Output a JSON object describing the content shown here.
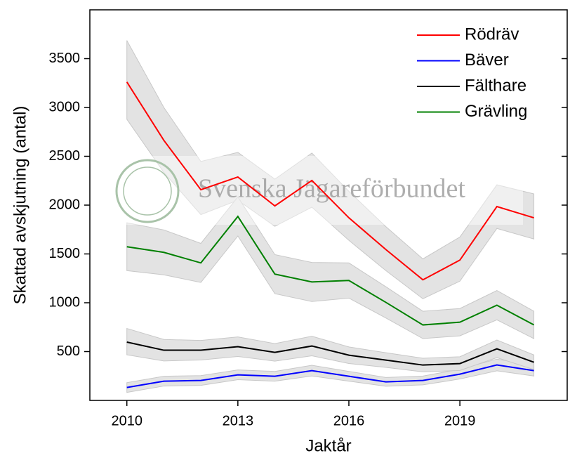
{
  "chart_data": {
    "type": "line",
    "xlabel": "Jaktår",
    "ylabel": "Skattad avskjutning (antal)",
    "watermark": "Svenska Jägareförbundet",
    "x": [
      2010,
      2011,
      2012,
      2013,
      2014,
      2015,
      2016,
      2017,
      2018,
      2019,
      2020,
      2021
    ],
    "xlim": [
      2009,
      2021.9
    ],
    "xticks": [
      2010,
      2013,
      2016,
      2019
    ],
    "ylim": [
      0,
      4000
    ],
    "yticks": [
      500,
      1000,
      1500,
      2000,
      2500,
      3000,
      3500
    ],
    "legend": "upper right",
    "band_color": "#e3e3e3",
    "series": [
      {
        "name": "Rödräv",
        "color": "#ff0000",
        "values": [
          3261,
          2663,
          2158,
          2288,
          1992,
          2252,
          1870,
          1545,
          1235,
          1437,
          1985,
          1870
        ],
        "lower": [
          2879,
          2335,
          1903,
          2050,
          1783,
          1979,
          1639,
          1329,
          1041,
          1221,
          1761,
          1653
        ],
        "upper": [
          3686,
          3000,
          2447,
          2540,
          2266,
          2533,
          2141,
          1780,
          1449,
          1673,
          2208,
          2115
        ]
      },
      {
        "name": "Bäver",
        "color": "#0000ff",
        "values": [
          132,
          197,
          204,
          262,
          247,
          305,
          247,
          190,
          204,
          269,
          363,
          305
        ],
        "lower": [
          82,
          147,
          154,
          212,
          197,
          250,
          197,
          145,
          159,
          219,
          303,
          250
        ],
        "upper": [
          182,
          247,
          254,
          312,
          297,
          360,
          297,
          235,
          249,
          319,
          423,
          360
        ]
      },
      {
        "name": "Fälthare",
        "color": "#000000",
        "values": [
          597,
          514,
          514,
          550,
          492,
          557,
          463,
          413,
          362,
          377,
          528,
          391
        ],
        "lower": [
          467,
          404,
          414,
          450,
          402,
          457,
          378,
          338,
          292,
          307,
          438,
          316
        ],
        "upper": [
          737,
          624,
          614,
          650,
          582,
          657,
          548,
          488,
          432,
          447,
          618,
          466
        ]
      },
      {
        "name": "Grävling",
        "color": "#008000",
        "values": [
          1574,
          1516,
          1408,
          1884,
          1293,
          1213,
          1228,
          1004,
          773,
          801,
          975,
          773
        ],
        "lower": [
          1329,
          1286,
          1208,
          1684,
          1093,
          1013,
          1048,
          844,
          633,
          661,
          825,
          633
        ],
        "upper": [
          1819,
          1746,
          1608,
          2084,
          1493,
          1413,
          1408,
          1164,
          913,
          941,
          1125,
          913
        ]
      }
    ]
  }
}
